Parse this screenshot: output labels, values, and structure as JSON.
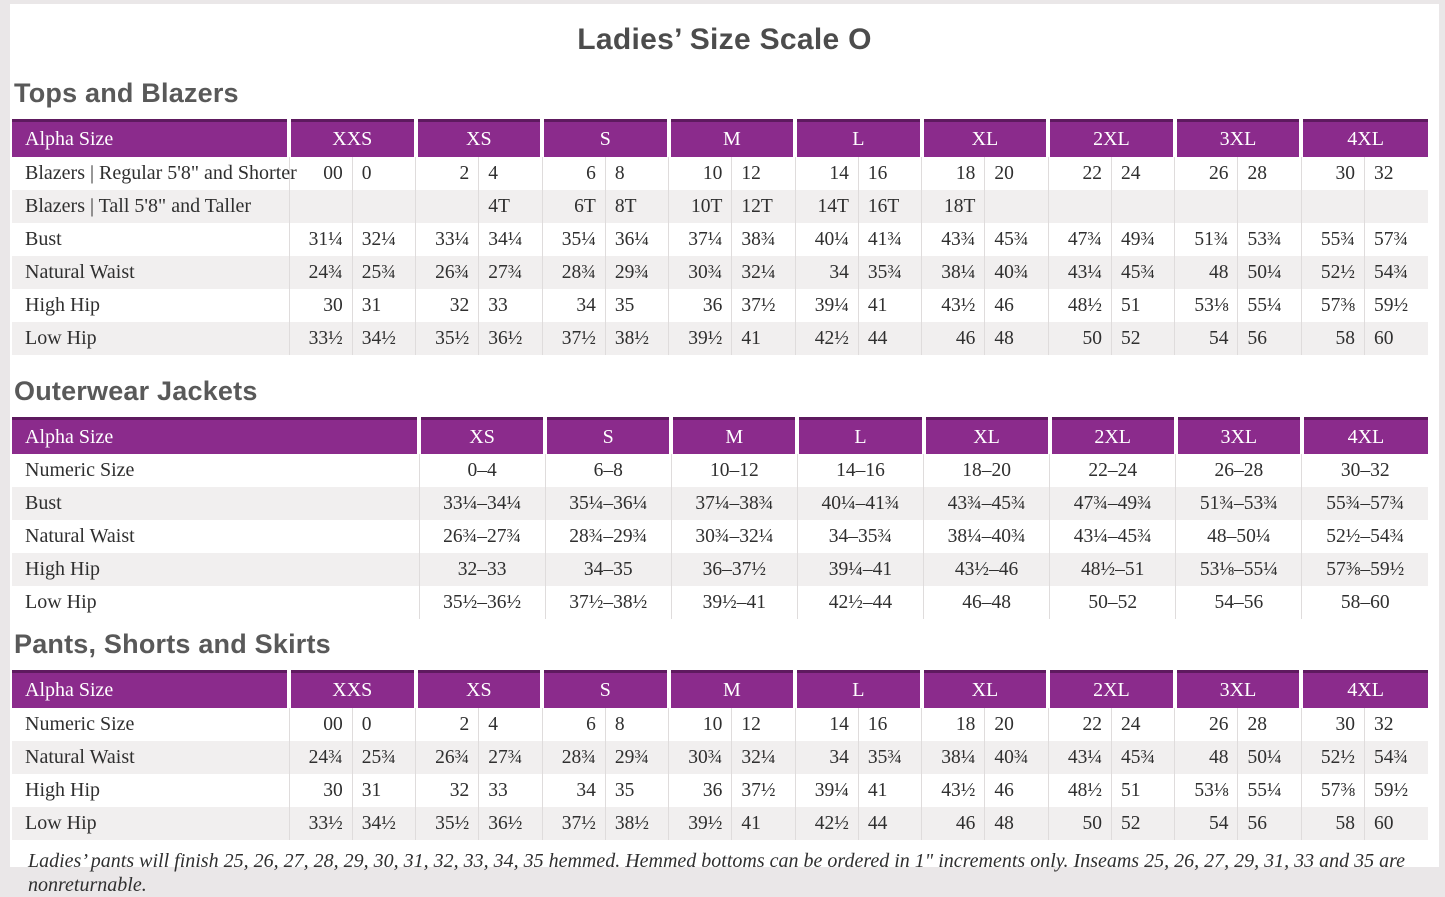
{
  "page": {
    "title": "Ladies’ Size Scale O"
  },
  "colors": {
    "header_purple": "#8B2B8C",
    "header_purple_dark": "#5E1A5F",
    "row_stripe": "#F1EFEF",
    "column_divider": "#DFDCDC",
    "page_background": "#EAE7E8",
    "heading_text": "#595959",
    "body_text": "#2F2F2F"
  },
  "tables": [
    {
      "heading": "Tops and Blazers",
      "header_label": "Alpha Size",
      "sizes": [
        "XXS",
        "XS",
        "S",
        "M",
        "L",
        "XL",
        "2XL",
        "3XL",
        "4XL"
      ],
      "split_columns": true,
      "rows": [
        {
          "label": "Blazers  |  Regular 5'8\" and Shorter",
          "values": [
            "00",
            "0",
            "2",
            "4",
            "6",
            "8",
            "10",
            "12",
            "14",
            "16",
            "18",
            "20",
            "22",
            "24",
            "26",
            "28",
            "30",
            "32"
          ]
        },
        {
          "label": "Blazers  |  Tall 5'8\" and Taller",
          "values": [
            "",
            "",
            "",
            "4T",
            "6T",
            "8T",
            "10T",
            "12T",
            "14T",
            "16T",
            "18T",
            "",
            "",
            "",
            "",
            "",
            "",
            ""
          ]
        },
        {
          "label": "Bust",
          "values": [
            "31¼",
            "32¼",
            "33¼",
            "34¼",
            "35¼",
            "36¼",
            "37¼",
            "38¾",
            "40¼",
            "41¾",
            "43¾",
            "45¾",
            "47¾",
            "49¾",
            "51¾",
            "53¾",
            "55¾",
            "57¾"
          ]
        },
        {
          "label": "Natural Waist",
          "values": [
            "24¾",
            "25¾",
            "26¾",
            "27¾",
            "28¾",
            "29¾",
            "30¾",
            "32¼",
            "34",
            "35¾",
            "38¼",
            "40¾",
            "43¼",
            "45¾",
            "48",
            "50¼",
            "52½",
            "54¾"
          ]
        },
        {
          "label": "High Hip",
          "values": [
            "30",
            "31",
            "32",
            "33",
            "34",
            "35",
            "36",
            "37½",
            "39¼",
            "41",
            "43½",
            "46",
            "48½",
            "51",
            "53⅛",
            "55¼",
            "57⅜",
            "59½"
          ]
        },
        {
          "label": "Low Hip",
          "values": [
            "33½",
            "34½",
            "35½",
            "36½",
            "37½",
            "38½",
            "39½",
            "41",
            "42½",
            "44",
            "46",
            "48",
            "50",
            "52",
            "54",
            "56",
            "58",
            "60"
          ]
        }
      ]
    },
    {
      "heading": "Outerwear Jackets",
      "header_label": "Alpha Size",
      "sizes": [
        "XS",
        "S",
        "M",
        "L",
        "XL",
        "2XL",
        "3XL",
        "4XL"
      ],
      "split_columns": false,
      "rows": [
        {
          "label": "Numeric Size",
          "values": [
            "0–4",
            "6–8",
            "10–12",
            "14–16",
            "18–20",
            "22–24",
            "26–28",
            "30–32"
          ]
        },
        {
          "label": "Bust",
          "values": [
            "33¼–34¼",
            "35¼–36¼",
            "37¼–38¾",
            "40¼–41¾",
            "43¾–45¾",
            "47¾–49¾",
            "51¾–53¾",
            "55¾–57¾"
          ]
        },
        {
          "label": "Natural Waist",
          "values": [
            "26¾–27¾",
            "28¾–29¾",
            "30¾–32¼",
            "34–35¾",
            "38¼–40¾",
            "43¼–45¾",
            "48–50¼",
            "52½–54¾"
          ]
        },
        {
          "label": "High Hip",
          "values": [
            "32–33",
            "34–35",
            "36–37½",
            "39¼–41",
            "43½–46",
            "48½–51",
            "53⅛–55¼",
            "57⅜–59½"
          ]
        },
        {
          "label": "Low Hip",
          "values": [
            "35½–36½",
            "37½–38½",
            "39½–41",
            "42½–44",
            "46–48",
            "50–52",
            "54–56",
            "58–60"
          ]
        }
      ]
    },
    {
      "heading": "Pants, Shorts and Skirts",
      "header_label": "Alpha Size",
      "sizes": [
        "XXS",
        "XS",
        "S",
        "M",
        "L",
        "XL",
        "2XL",
        "3XL",
        "4XL"
      ],
      "split_columns": true,
      "rows": [
        {
          "label": "Numeric Size",
          "values": [
            "00",
            "0",
            "2",
            "4",
            "6",
            "8",
            "10",
            "12",
            "14",
            "16",
            "18",
            "20",
            "22",
            "24",
            "26",
            "28",
            "30",
            "32"
          ]
        },
        {
          "label": "Natural Waist",
          "values": [
            "24¾",
            "25¾",
            "26¾",
            "27¾",
            "28¾",
            "29¾",
            "30¾",
            "32¼",
            "34",
            "35¾",
            "38¼",
            "40¾",
            "43¼",
            "45¾",
            "48",
            "50¼",
            "52½",
            "54¾"
          ]
        },
        {
          "label": "High Hip",
          "values": [
            "30",
            "31",
            "32",
            "33",
            "34",
            "35",
            "36",
            "37½",
            "39¼",
            "41",
            "43½",
            "46",
            "48½",
            "51",
            "53⅛",
            "55¼",
            "57⅜",
            "59½"
          ]
        },
        {
          "label": "Low Hip",
          "values": [
            "33½",
            "34½",
            "35½",
            "36½",
            "37½",
            "38½",
            "39½",
            "41",
            "42½",
            "44",
            "46",
            "48",
            "50",
            "52",
            "54",
            "56",
            "58",
            "60"
          ]
        }
      ]
    }
  ],
  "footnote": "Ladies’ pants will finish 25, 26, 27, 28, 29, 30, 31, 32, 33, 34, 35 hemmed. Hemmed bottoms can be ordered in 1\" increments only. Inseams 25, 26, 27, 29, 31, 33 and 35 are nonreturnable."
}
